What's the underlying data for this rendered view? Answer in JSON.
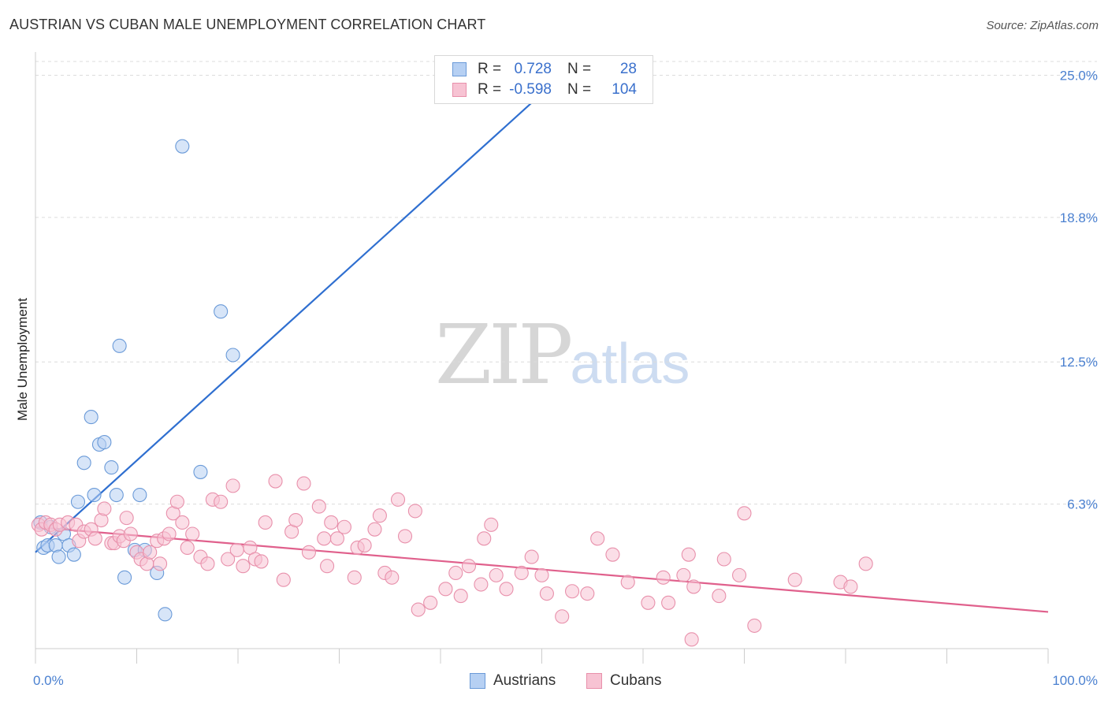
{
  "title": "AUSTRIAN VS CUBAN MALE UNEMPLOYMENT CORRELATION CHART",
  "source": "Source: ZipAtlas.com",
  "watermark": {
    "zip": "ZIP",
    "atlas": "atlas"
  },
  "legend": {
    "r_label": "R =",
    "n_label": "N =",
    "rows": [
      {
        "name": "Austrians",
        "r": "0.728",
        "n": "28"
      },
      {
        "name": "Cubans",
        "r": "-0.598",
        "n": "104"
      }
    ]
  },
  "colors": {
    "austrians_fill": "#b6d0f3",
    "austrians_stroke": "#6a9ad8",
    "austrians_line": "#2f6fd0",
    "cubans_fill": "#f7c3d3",
    "cubans_stroke": "#e890ab",
    "cubans_line": "#e0608c",
    "tick_text": "#4a80d0",
    "grid": "#dcdcdc"
  },
  "chart_data": {
    "type": "scatter",
    "xlabel": "",
    "ylabel": "Male Unemployment",
    "xlim": [
      0,
      100
    ],
    "ylim": [
      0,
      25.6
    ],
    "x_tick_labels": [
      "0.0%",
      "100.0%"
    ],
    "y_ticks": [
      6.3,
      12.5,
      18.8,
      25.0
    ],
    "y_tick_labels": [
      "6.3%",
      "12.5%",
      "18.8%",
      "25.0%"
    ],
    "grid": "horizontal dashed",
    "legend_placement": "top-center",
    "series": [
      {
        "name": "Austrians",
        "trend": {
          "x": [
            0,
            52.5
          ],
          "y": [
            4.2,
            25.2
          ]
        },
        "points": [
          {
            "x": 0.5,
            "y": 5.5
          },
          {
            "x": 0.8,
            "y": 4.4
          },
          {
            "x": 1.2,
            "y": 4.5
          },
          {
            "x": 1.5,
            "y": 5.3
          },
          {
            "x": 2.0,
            "y": 4.5
          },
          {
            "x": 2.3,
            "y": 4.0
          },
          {
            "x": 2.8,
            "y": 5.0
          },
          {
            "x": 3.3,
            "y": 4.5
          },
          {
            "x": 3.8,
            "y": 4.1
          },
          {
            "x": 4.2,
            "y": 6.4
          },
          {
            "x": 4.8,
            "y": 8.1
          },
          {
            "x": 5.5,
            "y": 10.1
          },
          {
            "x": 5.8,
            "y": 6.7
          },
          {
            "x": 6.3,
            "y": 8.9
          },
          {
            "x": 6.8,
            "y": 9.0
          },
          {
            "x": 7.5,
            "y": 7.9
          },
          {
            "x": 8.0,
            "y": 6.7
          },
          {
            "x": 8.3,
            "y": 13.2
          },
          {
            "x": 8.8,
            "y": 3.1
          },
          {
            "x": 9.8,
            "y": 4.3
          },
          {
            "x": 10.3,
            "y": 6.7
          },
          {
            "x": 10.8,
            "y": 4.3
          },
          {
            "x": 12.0,
            "y": 3.3
          },
          {
            "x": 12.8,
            "y": 1.5
          },
          {
            "x": 14.5,
            "y": 21.9
          },
          {
            "x": 16.3,
            "y": 7.7
          },
          {
            "x": 18.3,
            "y": 14.7
          },
          {
            "x": 19.5,
            "y": 12.8
          }
        ]
      },
      {
        "name": "Cubans",
        "trend": {
          "x": [
            0,
            100
          ],
          "y": [
            5.3,
            1.6
          ]
        },
        "points": [
          {
            "x": 0.3,
            "y": 5.4
          },
          {
            "x": 0.6,
            "y": 5.2
          },
          {
            "x": 1.0,
            "y": 5.5
          },
          {
            "x": 1.5,
            "y": 5.4
          },
          {
            "x": 2.0,
            "y": 5.2
          },
          {
            "x": 2.4,
            "y": 5.4
          },
          {
            "x": 3.2,
            "y": 5.5
          },
          {
            "x": 4.0,
            "y": 5.4
          },
          {
            "x": 4.3,
            "y": 4.7
          },
          {
            "x": 4.8,
            "y": 5.1
          },
          {
            "x": 5.5,
            "y": 5.2
          },
          {
            "x": 5.9,
            "y": 4.8
          },
          {
            "x": 6.5,
            "y": 5.6
          },
          {
            "x": 6.8,
            "y": 6.1
          },
          {
            "x": 7.5,
            "y": 4.6
          },
          {
            "x": 7.8,
            "y": 4.6
          },
          {
            "x": 8.3,
            "y": 4.9
          },
          {
            "x": 8.7,
            "y": 4.7
          },
          {
            "x": 9.0,
            "y": 5.7
          },
          {
            "x": 9.4,
            "y": 5.0
          },
          {
            "x": 10.0,
            "y": 4.2
          },
          {
            "x": 10.4,
            "y": 3.9
          },
          {
            "x": 11.0,
            "y": 3.7
          },
          {
            "x": 11.3,
            "y": 4.2
          },
          {
            "x": 12.0,
            "y": 4.7
          },
          {
            "x": 12.3,
            "y": 3.7
          },
          {
            "x": 12.7,
            "y": 4.8
          },
          {
            "x": 13.2,
            "y": 5.0
          },
          {
            "x": 13.6,
            "y": 5.9
          },
          {
            "x": 14.0,
            "y": 6.4
          },
          {
            "x": 14.5,
            "y": 5.5
          },
          {
            "x": 15.0,
            "y": 4.4
          },
          {
            "x": 15.5,
            "y": 5.0
          },
          {
            "x": 16.3,
            "y": 4.0
          },
          {
            "x": 17.0,
            "y": 3.7
          },
          {
            "x": 17.5,
            "y": 6.5
          },
          {
            "x": 18.3,
            "y": 6.4
          },
          {
            "x": 19.0,
            "y": 3.9
          },
          {
            "x": 19.5,
            "y": 7.1
          },
          {
            "x": 19.9,
            "y": 4.3
          },
          {
            "x": 20.5,
            "y": 3.6
          },
          {
            "x": 21.2,
            "y": 4.4
          },
          {
            "x": 21.7,
            "y": 3.9
          },
          {
            "x": 22.3,
            "y": 3.8
          },
          {
            "x": 22.7,
            "y": 5.5
          },
          {
            "x": 23.7,
            "y": 7.3
          },
          {
            "x": 24.5,
            "y": 3.0
          },
          {
            "x": 25.3,
            "y": 5.1
          },
          {
            "x": 25.7,
            "y": 5.6
          },
          {
            "x": 26.5,
            "y": 7.2
          },
          {
            "x": 27.0,
            "y": 4.2
          },
          {
            "x": 28.0,
            "y": 6.2
          },
          {
            "x": 28.5,
            "y": 4.8
          },
          {
            "x": 28.8,
            "y": 3.6
          },
          {
            "x": 29.2,
            "y": 5.5
          },
          {
            "x": 29.8,
            "y": 4.8
          },
          {
            "x": 30.5,
            "y": 5.3
          },
          {
            "x": 31.5,
            "y": 3.1
          },
          {
            "x": 31.8,
            "y": 4.4
          },
          {
            "x": 32.5,
            "y": 4.5
          },
          {
            "x": 33.5,
            "y": 5.2
          },
          {
            "x": 34.0,
            "y": 5.8
          },
          {
            "x": 34.5,
            "y": 3.3
          },
          {
            "x": 35.2,
            "y": 3.1
          },
          {
            "x": 35.8,
            "y": 6.5
          },
          {
            "x": 36.5,
            "y": 4.9
          },
          {
            "x": 37.5,
            "y": 6.0
          },
          {
            "x": 37.8,
            "y": 1.7
          },
          {
            "x": 39.0,
            "y": 2.0
          },
          {
            "x": 40.5,
            "y": 2.6
          },
          {
            "x": 41.5,
            "y": 3.3
          },
          {
            "x": 42.0,
            "y": 2.3
          },
          {
            "x": 42.8,
            "y": 3.6
          },
          {
            "x": 44.0,
            "y": 2.8
          },
          {
            "x": 44.3,
            "y": 4.8
          },
          {
            "x": 45.0,
            "y": 5.4
          },
          {
            "x": 45.5,
            "y": 3.2
          },
          {
            "x": 46.5,
            "y": 2.6
          },
          {
            "x": 48.0,
            "y": 3.3
          },
          {
            "x": 49.0,
            "y": 4.0
          },
          {
            "x": 50.0,
            "y": 3.2
          },
          {
            "x": 50.5,
            "y": 2.4
          },
          {
            "x": 52.0,
            "y": 1.4
          },
          {
            "x": 53.0,
            "y": 2.5
          },
          {
            "x": 54.5,
            "y": 2.4
          },
          {
            "x": 55.5,
            "y": 4.8
          },
          {
            "x": 57.0,
            "y": 4.1
          },
          {
            "x": 58.5,
            "y": 2.9
          },
          {
            "x": 60.5,
            "y": 2.0
          },
          {
            "x": 62.0,
            "y": 3.1
          },
          {
            "x": 62.5,
            "y": 2.0
          },
          {
            "x": 64.0,
            "y": 3.2
          },
          {
            "x": 64.5,
            "y": 4.1
          },
          {
            "x": 65.0,
            "y": 2.7
          },
          {
            "x": 67.5,
            "y": 2.3
          },
          {
            "x": 68.0,
            "y": 3.9
          },
          {
            "x": 70.0,
            "y": 5.9
          },
          {
            "x": 71.0,
            "y": 1.0
          },
          {
            "x": 69.5,
            "y": 3.2
          },
          {
            "x": 75.0,
            "y": 3.0
          },
          {
            "x": 79.5,
            "y": 2.9
          },
          {
            "x": 80.5,
            "y": 2.7
          },
          {
            "x": 82.0,
            "y": 3.7
          },
          {
            "x": 64.8,
            "y": 0.4
          }
        ]
      }
    ]
  }
}
